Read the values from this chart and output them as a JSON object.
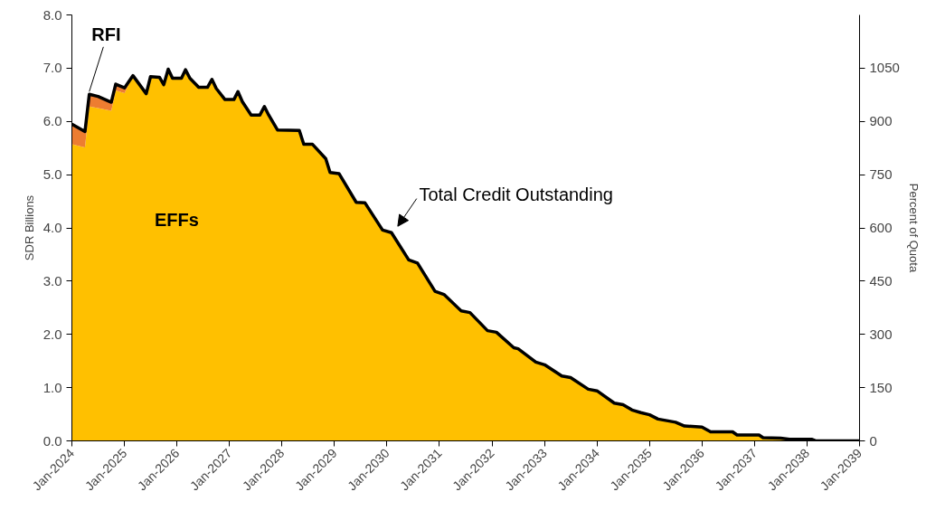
{
  "chart_data": {
    "type": "area",
    "stacked": true,
    "ylabel": "SDR Billions",
    "y2label": "Percent of Quota",
    "legend": false,
    "grid": false,
    "annotations": [
      {
        "text": "Total Credit Outstanding",
        "x": "2030-02",
        "y": 3.91
      }
    ],
    "x": [
      "2024-01",
      "2024-04",
      "2024-05",
      "2024-07",
      "2024-10",
      "2024-11",
      "2025-01",
      "2025-03",
      "2025-06",
      "2025-07",
      "2025-09",
      "2025-10",
      "2025-11",
      "2025-12",
      "2026-02",
      "2026-03",
      "2026-04",
      "2026-06",
      "2026-08",
      "2026-09",
      "2026-10",
      "2026-12",
      "2027-02",
      "2027-03",
      "2027-04",
      "2027-06",
      "2027-08",
      "2027-09",
      "2027-10",
      "2027-12",
      "2028-05",
      "2028-06",
      "2028-08",
      "2028-11",
      "2028-12",
      "2029-02",
      "2029-06",
      "2029-08",
      "2029-12",
      "2030-02",
      "2030-06",
      "2030-08",
      "2030-12",
      "2031-02",
      "2031-06",
      "2031-08",
      "2031-12",
      "2032-02",
      "2032-06",
      "2032-07",
      "2032-11",
      "2033-01",
      "2033-05",
      "2033-07",
      "2033-11",
      "2034-01",
      "2034-05",
      "2034-07",
      "2034-09",
      "2034-11",
      "2035-01",
      "2035-03",
      "2035-07",
      "2035-09",
      "2036-01",
      "2036-03",
      "2036-08",
      "2036-09",
      "2037-02",
      "2037-03",
      "2037-07",
      "2037-09",
      "2038-02",
      "2038-03",
      "2039-01"
    ],
    "series": [
      {
        "name": "EFFs",
        "color": "#ffc000",
        "values": [
          5.57,
          5.51,
          6.28,
          6.25,
          6.2,
          6.58,
          6.53,
          6.86,
          6.52,
          6.84,
          6.83,
          6.69,
          6.98,
          6.81,
          6.81,
          6.97,
          6.81,
          6.64,
          6.64,
          6.79,
          6.62,
          6.41,
          6.41,
          6.56,
          6.37,
          6.12,
          6.12,
          6.28,
          6.12,
          5.84,
          5.83,
          5.57,
          5.57,
          5.3,
          5.04,
          5.02,
          4.48,
          4.47,
          3.96,
          3.91,
          3.4,
          3.34,
          2.81,
          2.75,
          2.44,
          2.41,
          2.07,
          2.04,
          1.75,
          1.73,
          1.48,
          1.43,
          1.22,
          1.19,
          0.97,
          0.94,
          0.71,
          0.68,
          0.58,
          0.53,
          0.49,
          0.41,
          0.35,
          0.28,
          0.26,
          0.17,
          0.17,
          0.11,
          0.11,
          0.06,
          0.05,
          0.03,
          0.03,
          0,
          0
        ]
      },
      {
        "name": "RFI",
        "color": "#ed7d31",
        "values": [
          0.38,
          0.3,
          0.23,
          0.22,
          0.16,
          0.12,
          0.1,
          0,
          null,
          null,
          null,
          null,
          null,
          null,
          null,
          null,
          null,
          null,
          null,
          null,
          null,
          null,
          null,
          null,
          null,
          null,
          null,
          null,
          null,
          null,
          null,
          null,
          null,
          null,
          null,
          null,
          null,
          null,
          null,
          null,
          null,
          null,
          null,
          null,
          null,
          null,
          null,
          null,
          null,
          null,
          null,
          null,
          null,
          null,
          null,
          null,
          null,
          null,
          null,
          null,
          null,
          null,
          null,
          null,
          null,
          null,
          null,
          null,
          null,
          null,
          null,
          null,
          null,
          null,
          null
        ]
      }
    ],
    "xlim": [
      "2024-01",
      "2039-01"
    ],
    "xticks": [
      {
        "value": "2024-01",
        "label": "Jan-2024"
      },
      {
        "value": "2025-01",
        "label": "Jan-2025"
      },
      {
        "value": "2026-01",
        "label": "Jan-2026"
      },
      {
        "value": "2027-01",
        "label": "Jan-2027"
      },
      {
        "value": "2028-01",
        "label": "Jan-2028"
      },
      {
        "value": "2029-01",
        "label": "Jan-2029"
      },
      {
        "value": "2030-01",
        "label": "Jan-2030"
      },
      {
        "value": "2031-01",
        "label": "Jan-2031"
      },
      {
        "value": "2032-01",
        "label": "Jan-2032"
      },
      {
        "value": "2033-01",
        "label": "Jan-2033"
      },
      {
        "value": "2034-01",
        "label": "Jan-2034"
      },
      {
        "value": "2035-01",
        "label": "Jan-2035"
      },
      {
        "value": "2036-01",
        "label": "Jan-2036"
      },
      {
        "value": "2037-01",
        "label": "Jan-2037"
      },
      {
        "value": "2038-01",
        "label": "Jan-2038"
      },
      {
        "value": "2039-01",
        "label": "Jan-2039"
      }
    ],
    "ylim": [
      0,
      8
    ],
    "yticks": [
      {
        "value": 0,
        "label": "0.0"
      },
      {
        "value": 1,
        "label": "1.0"
      },
      {
        "value": 2,
        "label": "2.0"
      },
      {
        "value": 3,
        "label": "3.0"
      },
      {
        "value": 4,
        "label": "4.0"
      },
      {
        "value": 5,
        "label": "5.0"
      },
      {
        "value": 6,
        "label": "6.0"
      },
      {
        "value": 7,
        "label": "7.0"
      },
      {
        "value": 8,
        "label": "8.0"
      }
    ],
    "y2lim": [
      0,
      1200
    ],
    "y2ticks": [
      0,
      150,
      300,
      450,
      600,
      750,
      900,
      1050
    ]
  }
}
